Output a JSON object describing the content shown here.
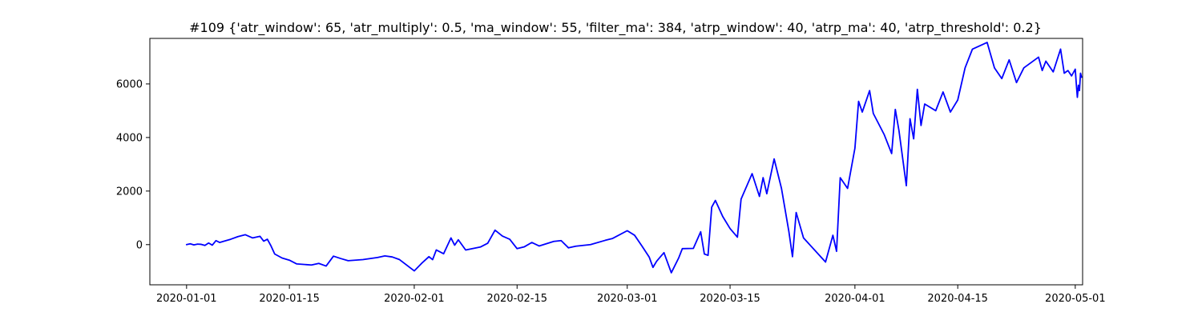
{
  "chart_data": {
    "type": "line",
    "title": "#109 {'atr_window': 65, 'atr_multiply': 0.5, 'ma_window': 55, 'filter_ma': 384, 'atrp_window': 40, 'atrp_ma': 40, 'atrp_threshold': 0.2}",
    "xlabel": "",
    "ylabel": "",
    "x_axis": {
      "kind": "date",
      "range": [
        "2019-12-27",
        "2020-05-02"
      ],
      "ticks": [
        "2020-01-01",
        "2020-01-15",
        "2020-02-01",
        "2020-02-15",
        "2020-03-01",
        "2020-03-15",
        "2020-04-01",
        "2020-04-15",
        "2020-05-01"
      ]
    },
    "y_axis": {
      "range": [
        -1500,
        7700
      ],
      "ticks": [
        0,
        2000,
        4000,
        6000
      ]
    },
    "grid": false,
    "legend": "none",
    "series": [
      {
        "color": "#0000ff",
        "points": [
          [
            "2020-01-01",
            0
          ],
          [
            "2020-01-01",
            30
          ],
          [
            "2020-01-02",
            -10
          ],
          [
            "2020-01-02",
            20
          ],
          [
            "2020-01-03",
            10
          ],
          [
            "2020-01-03",
            -30
          ],
          [
            "2020-01-04",
            60
          ],
          [
            "2020-01-04",
            -20
          ],
          [
            "2020-01-05",
            150
          ],
          [
            "2020-01-05",
            80
          ],
          [
            "2020-01-06",
            120
          ],
          [
            "2020-01-07",
            200
          ],
          [
            "2020-01-08",
            300
          ],
          [
            "2020-01-09",
            370
          ],
          [
            "2020-01-10",
            250
          ],
          [
            "2020-01-11",
            310
          ],
          [
            "2020-01-11",
            130
          ],
          [
            "2020-01-12",
            200
          ],
          [
            "2020-01-12",
            -50
          ],
          [
            "2020-01-13",
            -350
          ],
          [
            "2020-01-14",
            -500
          ],
          [
            "2020-01-15",
            -580
          ],
          [
            "2020-01-16",
            -720
          ],
          [
            "2020-01-18",
            -760
          ],
          [
            "2020-01-19",
            -700
          ],
          [
            "2020-01-20",
            -800
          ],
          [
            "2020-01-21",
            -430
          ],
          [
            "2020-01-22",
            -520
          ],
          [
            "2020-01-23",
            -600
          ],
          [
            "2020-01-25",
            -560
          ],
          [
            "2020-01-27",
            -480
          ],
          [
            "2020-01-28",
            -420
          ],
          [
            "2020-01-29",
            -460
          ],
          [
            "2020-01-30",
            -560
          ],
          [
            "2020-02-01",
            -980
          ],
          [
            "2020-02-02",
            -700
          ],
          [
            "2020-02-03",
            -450
          ],
          [
            "2020-02-03",
            -560
          ],
          [
            "2020-02-04",
            -200
          ],
          [
            "2020-02-05",
            -340
          ],
          [
            "2020-02-06",
            250
          ],
          [
            "2020-02-06",
            -20
          ],
          [
            "2020-02-07",
            180
          ],
          [
            "2020-02-08",
            -200
          ],
          [
            "2020-02-10",
            -90
          ],
          [
            "2020-02-11",
            50
          ],
          [
            "2020-02-12",
            540
          ],
          [
            "2020-02-13",
            320
          ],
          [
            "2020-02-14",
            200
          ],
          [
            "2020-02-15",
            -150
          ],
          [
            "2020-02-16",
            -80
          ],
          [
            "2020-02-17",
            80
          ],
          [
            "2020-02-18",
            -50
          ],
          [
            "2020-02-20",
            120
          ],
          [
            "2020-02-21",
            150
          ],
          [
            "2020-02-22",
            -120
          ],
          [
            "2020-02-23",
            -60
          ],
          [
            "2020-02-25",
            0
          ],
          [
            "2020-02-27",
            160
          ],
          [
            "2020-02-28",
            230
          ],
          [
            "2020-03-01",
            520
          ],
          [
            "2020-03-02",
            350
          ],
          [
            "2020-03-03",
            -50
          ],
          [
            "2020-03-04",
            -470
          ],
          [
            "2020-03-04",
            -850
          ],
          [
            "2020-03-05",
            -620
          ],
          [
            "2020-03-06",
            -300
          ],
          [
            "2020-03-07",
            -1050
          ],
          [
            "2020-03-08",
            -500
          ],
          [
            "2020-03-08",
            -150
          ],
          [
            "2020-03-10",
            -140
          ],
          [
            "2020-03-11",
            480
          ],
          [
            "2020-03-11",
            -350
          ],
          [
            "2020-03-12",
            -400
          ],
          [
            "2020-03-12",
            1400
          ],
          [
            "2020-03-13",
            1650
          ],
          [
            "2020-03-14",
            1050
          ],
          [
            "2020-03-15",
            600
          ],
          [
            "2020-03-16",
            280
          ],
          [
            "2020-03-16",
            1700
          ],
          [
            "2020-03-18",
            2650
          ],
          [
            "2020-03-19",
            1800
          ],
          [
            "2020-03-19",
            2500
          ],
          [
            "2020-03-20",
            1900
          ],
          [
            "2020-03-21",
            3200
          ],
          [
            "2020-03-22",
            2100
          ],
          [
            "2020-03-23",
            500
          ],
          [
            "2020-03-23",
            -450
          ],
          [
            "2020-03-24",
            1200
          ],
          [
            "2020-03-25",
            250
          ],
          [
            "2020-03-27",
            -350
          ],
          [
            "2020-03-28",
            -650
          ],
          [
            "2020-03-29",
            350
          ],
          [
            "2020-03-29",
            -250
          ],
          [
            "2020-03-30",
            2500
          ],
          [
            "2020-03-31",
            2100
          ],
          [
            "2020-04-01",
            3600
          ],
          [
            "2020-04-01",
            5350
          ],
          [
            "2020-04-02",
            4950
          ],
          [
            "2020-04-03",
            5750
          ],
          [
            "2020-04-03",
            4900
          ],
          [
            "2020-04-05",
            4100
          ],
          [
            "2020-04-06",
            3400
          ],
          [
            "2020-04-06",
            5050
          ],
          [
            "2020-04-07",
            4250
          ],
          [
            "2020-04-08",
            2200
          ],
          [
            "2020-04-08",
            4700
          ],
          [
            "2020-04-09",
            3950
          ],
          [
            "2020-04-09",
            5800
          ],
          [
            "2020-04-10",
            4450
          ],
          [
            "2020-04-10",
            5250
          ],
          [
            "2020-04-12",
            5000
          ],
          [
            "2020-04-13",
            5700
          ],
          [
            "2020-04-14",
            4950
          ],
          [
            "2020-04-15",
            5400
          ],
          [
            "2020-04-16",
            6600
          ],
          [
            "2020-04-17",
            7300
          ],
          [
            "2020-04-19",
            7550
          ],
          [
            "2020-04-20",
            6600
          ],
          [
            "2020-04-21",
            6200
          ],
          [
            "2020-04-22",
            6900
          ],
          [
            "2020-04-23",
            6050
          ],
          [
            "2020-04-24",
            6600
          ],
          [
            "2020-04-26",
            7000
          ],
          [
            "2020-04-26",
            6500
          ],
          [
            "2020-04-27",
            6850
          ],
          [
            "2020-04-28",
            6450
          ],
          [
            "2020-04-29",
            7300
          ],
          [
            "2020-04-29",
            6400
          ],
          [
            "2020-04-30",
            6500
          ],
          [
            "2020-04-30",
            6300
          ],
          [
            "2020-05-01",
            6550
          ],
          [
            "2020-05-01",
            6000
          ],
          [
            "2020-05-01",
            5500
          ],
          [
            "2020-05-01",
            5950
          ],
          [
            "2020-05-01",
            5750
          ],
          [
            "2020-05-01",
            6400
          ],
          [
            "2020-05-01",
            6250
          ]
        ]
      }
    ]
  }
}
